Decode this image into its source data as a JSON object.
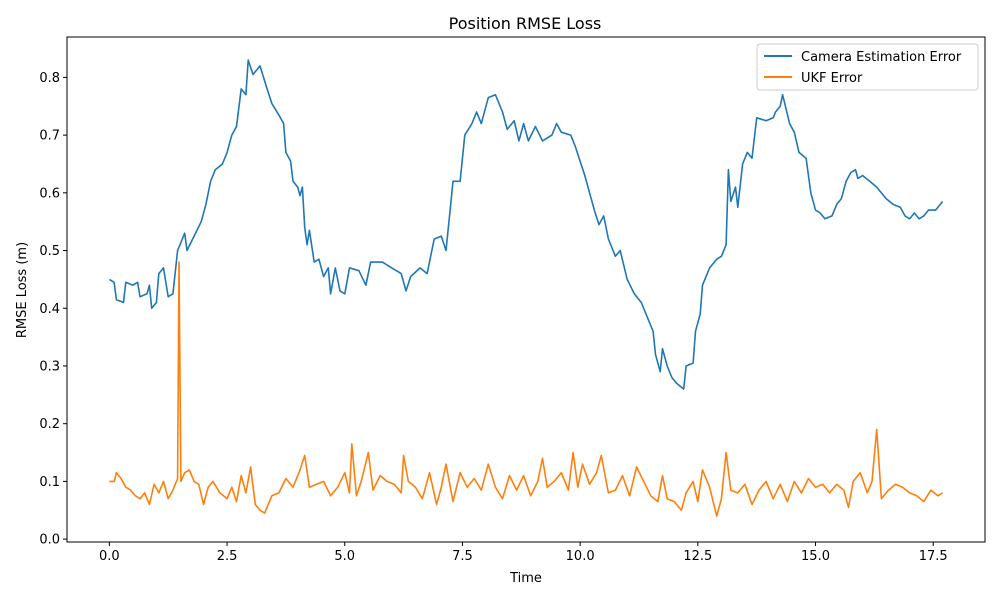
{
  "chart_data": {
    "type": "line",
    "title": "Position RMSE Loss",
    "xlabel": "Time",
    "ylabel": "RMSE Loss (m)",
    "xlim": [
      -0.9,
      18.6
    ],
    "ylim": [
      -0.005,
      0.87
    ],
    "xticks": [
      0.0,
      2.5,
      5.0,
      7.5,
      10.0,
      12.5,
      15.0,
      17.5
    ],
    "xtick_labels": [
      "0.0",
      "2.5",
      "5.0",
      "7.5",
      "10.0",
      "12.5",
      "15.0",
      "17.5"
    ],
    "yticks": [
      0.0,
      0.1,
      0.2,
      0.3,
      0.4,
      0.5,
      0.6,
      0.7,
      0.8
    ],
    "ytick_labels": [
      "0.0",
      "0.1",
      "0.2",
      "0.3",
      "0.4",
      "0.5",
      "0.6",
      "0.7",
      "0.8"
    ],
    "grid": false,
    "legend_position": "top-right",
    "series": [
      {
        "name": "Camera Estimation Error",
        "color": "#1f77b4",
        "points": [
          [
            0.0,
            0.45
          ],
          [
            0.1,
            0.445
          ],
          [
            0.15,
            0.415
          ],
          [
            0.3,
            0.41
          ],
          [
            0.35,
            0.445
          ],
          [
            0.5,
            0.44
          ],
          [
            0.6,
            0.445
          ],
          [
            0.65,
            0.42
          ],
          [
            0.8,
            0.425
          ],
          [
            0.85,
            0.44
          ],
          [
            0.9,
            0.4
          ],
          [
            1.0,
            0.41
          ],
          [
            1.05,
            0.46
          ],
          [
            1.15,
            0.47
          ],
          [
            1.25,
            0.42
          ],
          [
            1.35,
            0.425
          ],
          [
            1.45,
            0.5
          ],
          [
            1.6,
            0.53
          ],
          [
            1.65,
            0.5
          ],
          [
            1.8,
            0.525
          ],
          [
            1.95,
            0.55
          ],
          [
            2.05,
            0.58
          ],
          [
            2.15,
            0.62
          ],
          [
            2.25,
            0.64
          ],
          [
            2.4,
            0.65
          ],
          [
            2.5,
            0.67
          ],
          [
            2.6,
            0.7
          ],
          [
            2.7,
            0.715
          ],
          [
            2.8,
            0.78
          ],
          [
            2.9,
            0.77
          ],
          [
            2.95,
            0.83
          ],
          [
            3.05,
            0.805
          ],
          [
            3.2,
            0.82
          ],
          [
            3.35,
            0.78
          ],
          [
            3.45,
            0.755
          ],
          [
            3.6,
            0.735
          ],
          [
            3.7,
            0.72
          ],
          [
            3.75,
            0.67
          ],
          [
            3.85,
            0.655
          ],
          [
            3.9,
            0.62
          ],
          [
            4.0,
            0.61
          ],
          [
            4.05,
            0.595
          ],
          [
            4.1,
            0.61
          ],
          [
            4.15,
            0.54
          ],
          [
            4.2,
            0.51
          ],
          [
            4.25,
            0.535
          ],
          [
            4.35,
            0.48
          ],
          [
            4.45,
            0.485
          ],
          [
            4.55,
            0.455
          ],
          [
            4.65,
            0.47
          ],
          [
            4.7,
            0.425
          ],
          [
            4.8,
            0.47
          ],
          [
            4.9,
            0.43
          ],
          [
            5.0,
            0.425
          ],
          [
            5.1,
            0.47
          ],
          [
            5.3,
            0.465
          ],
          [
            5.45,
            0.44
          ],
          [
            5.55,
            0.48
          ],
          [
            5.8,
            0.48
          ],
          [
            6.0,
            0.47
          ],
          [
            6.2,
            0.46
          ],
          [
            6.3,
            0.43
          ],
          [
            6.4,
            0.455
          ],
          [
            6.6,
            0.47
          ],
          [
            6.75,
            0.46
          ],
          [
            6.9,
            0.52
          ],
          [
            7.05,
            0.525
          ],
          [
            7.15,
            0.5
          ],
          [
            7.25,
            0.58
          ],
          [
            7.3,
            0.62
          ],
          [
            7.45,
            0.62
          ],
          [
            7.55,
            0.7
          ],
          [
            7.7,
            0.72
          ],
          [
            7.8,
            0.74
          ],
          [
            7.9,
            0.72
          ],
          [
            8.05,
            0.765
          ],
          [
            8.2,
            0.77
          ],
          [
            8.35,
            0.74
          ],
          [
            8.45,
            0.71
          ],
          [
            8.6,
            0.725
          ],
          [
            8.7,
            0.69
          ],
          [
            8.8,
            0.72
          ],
          [
            8.9,
            0.69
          ],
          [
            9.05,
            0.715
          ],
          [
            9.2,
            0.69
          ],
          [
            9.4,
            0.7
          ],
          [
            9.5,
            0.72
          ],
          [
            9.6,
            0.705
          ],
          [
            9.8,
            0.7
          ],
          [
            9.9,
            0.68
          ],
          [
            10.0,
            0.655
          ],
          [
            10.1,
            0.63
          ],
          [
            10.2,
            0.6
          ],
          [
            10.3,
            0.57
          ],
          [
            10.4,
            0.545
          ],
          [
            10.5,
            0.56
          ],
          [
            10.6,
            0.52
          ],
          [
            10.75,
            0.49
          ],
          [
            10.85,
            0.5
          ],
          [
            11.0,
            0.45
          ],
          [
            11.15,
            0.425
          ],
          [
            11.3,
            0.41
          ],
          [
            11.45,
            0.38
          ],
          [
            11.55,
            0.36
          ],
          [
            11.6,
            0.32
          ],
          [
            11.7,
            0.29
          ],
          [
            11.75,
            0.33
          ],
          [
            11.85,
            0.3
          ],
          [
            11.95,
            0.28
          ],
          [
            12.05,
            0.27
          ],
          [
            12.2,
            0.26
          ],
          [
            12.25,
            0.3
          ],
          [
            12.4,
            0.305
          ],
          [
            12.45,
            0.36
          ],
          [
            12.55,
            0.39
          ],
          [
            12.6,
            0.44
          ],
          [
            12.75,
            0.47
          ],
          [
            12.9,
            0.485
          ],
          [
            13.0,
            0.49
          ],
          [
            13.1,
            0.51
          ],
          [
            13.15,
            0.64
          ],
          [
            13.2,
            0.585
          ],
          [
            13.3,
            0.61
          ],
          [
            13.35,
            0.575
          ],
          [
            13.45,
            0.65
          ],
          [
            13.55,
            0.67
          ],
          [
            13.65,
            0.66
          ],
          [
            13.75,
            0.73
          ],
          [
            13.95,
            0.725
          ],
          [
            14.1,
            0.73
          ],
          [
            14.15,
            0.74
          ],
          [
            14.25,
            0.75
          ],
          [
            14.3,
            0.77
          ],
          [
            14.45,
            0.72
          ],
          [
            14.55,
            0.705
          ],
          [
            14.65,
            0.67
          ],
          [
            14.8,
            0.66
          ],
          [
            14.9,
            0.6
          ],
          [
            15.0,
            0.57
          ],
          [
            15.1,
            0.565
          ],
          [
            15.2,
            0.555
          ],
          [
            15.35,
            0.56
          ],
          [
            15.45,
            0.58
          ],
          [
            15.55,
            0.59
          ],
          [
            15.65,
            0.62
          ],
          [
            15.75,
            0.635
          ],
          [
            15.85,
            0.64
          ],
          [
            15.9,
            0.625
          ],
          [
            16.0,
            0.63
          ],
          [
            16.15,
            0.62
          ],
          [
            16.3,
            0.61
          ],
          [
            16.5,
            0.59
          ],
          [
            16.65,
            0.58
          ],
          [
            16.8,
            0.575
          ],
          [
            16.9,
            0.56
          ],
          [
            17.0,
            0.555
          ],
          [
            17.1,
            0.565
          ],
          [
            17.2,
            0.555
          ],
          [
            17.3,
            0.56
          ],
          [
            17.4,
            0.57
          ],
          [
            17.55,
            0.57
          ],
          [
            17.7,
            0.585
          ]
        ]
      },
      {
        "name": "UKF Error",
        "color": "#ff7f0e",
        "points": [
          [
            0.0,
            0.1
          ],
          [
            0.1,
            0.1
          ],
          [
            0.15,
            0.115
          ],
          [
            0.25,
            0.105
          ],
          [
            0.35,
            0.09
          ],
          [
            0.45,
            0.085
          ],
          [
            0.55,
            0.075
          ],
          [
            0.65,
            0.07
          ],
          [
            0.75,
            0.08
          ],
          [
            0.85,
            0.06
          ],
          [
            0.95,
            0.095
          ],
          [
            1.05,
            0.08
          ],
          [
            1.15,
            0.1
          ],
          [
            1.25,
            0.07
          ],
          [
            1.35,
            0.085
          ],
          [
            1.45,
            0.105
          ],
          [
            1.48,
            0.48
          ],
          [
            1.52,
            0.1
          ],
          [
            1.6,
            0.115
          ],
          [
            1.7,
            0.12
          ],
          [
            1.8,
            0.1
          ],
          [
            1.9,
            0.095
          ],
          [
            2.0,
            0.06
          ],
          [
            2.1,
            0.09
          ],
          [
            2.2,
            0.1
          ],
          [
            2.35,
            0.08
          ],
          [
            2.5,
            0.07
          ],
          [
            2.6,
            0.09
          ],
          [
            2.7,
            0.065
          ],
          [
            2.8,
            0.11
          ],
          [
            2.9,
            0.08
          ],
          [
            3.0,
            0.125
          ],
          [
            3.1,
            0.06
          ],
          [
            3.2,
            0.05
          ],
          [
            3.3,
            0.045
          ],
          [
            3.45,
            0.075
          ],
          [
            3.6,
            0.08
          ],
          [
            3.75,
            0.105
          ],
          [
            3.9,
            0.09
          ],
          [
            4.05,
            0.12
          ],
          [
            4.15,
            0.145
          ],
          [
            4.25,
            0.09
          ],
          [
            4.4,
            0.095
          ],
          [
            4.55,
            0.1
          ],
          [
            4.7,
            0.075
          ],
          [
            4.85,
            0.09
          ],
          [
            5.0,
            0.115
          ],
          [
            5.1,
            0.08
          ],
          [
            5.15,
            0.165
          ],
          [
            5.25,
            0.075
          ],
          [
            5.35,
            0.1
          ],
          [
            5.5,
            0.15
          ],
          [
            5.6,
            0.085
          ],
          [
            5.75,
            0.11
          ],
          [
            5.9,
            0.1
          ],
          [
            6.05,
            0.095
          ],
          [
            6.2,
            0.08
          ],
          [
            6.25,
            0.145
          ],
          [
            6.35,
            0.1
          ],
          [
            6.5,
            0.09
          ],
          [
            6.65,
            0.07
          ],
          [
            6.8,
            0.115
          ],
          [
            6.95,
            0.06
          ],
          [
            7.05,
            0.09
          ],
          [
            7.15,
            0.13
          ],
          [
            7.3,
            0.065
          ],
          [
            7.45,
            0.115
          ],
          [
            7.6,
            0.09
          ],
          [
            7.75,
            0.105
          ],
          [
            7.9,
            0.085
          ],
          [
            8.05,
            0.13
          ],
          [
            8.2,
            0.09
          ],
          [
            8.35,
            0.07
          ],
          [
            8.5,
            0.11
          ],
          [
            8.65,
            0.085
          ],
          [
            8.8,
            0.11
          ],
          [
            8.95,
            0.075
          ],
          [
            9.1,
            0.1
          ],
          [
            9.2,
            0.14
          ],
          [
            9.3,
            0.09
          ],
          [
            9.45,
            0.1
          ],
          [
            9.6,
            0.115
          ],
          [
            9.75,
            0.085
          ],
          [
            9.85,
            0.15
          ],
          [
            9.95,
            0.09
          ],
          [
            10.05,
            0.13
          ],
          [
            10.2,
            0.095
          ],
          [
            10.35,
            0.115
          ],
          [
            10.45,
            0.145
          ],
          [
            10.6,
            0.08
          ],
          [
            10.75,
            0.085
          ],
          [
            10.9,
            0.11
          ],
          [
            11.05,
            0.075
          ],
          [
            11.2,
            0.125
          ],
          [
            11.35,
            0.1
          ],
          [
            11.5,
            0.075
          ],
          [
            11.65,
            0.065
          ],
          [
            11.75,
            0.11
          ],
          [
            11.85,
            0.07
          ],
          [
            12.0,
            0.065
          ],
          [
            12.15,
            0.05
          ],
          [
            12.25,
            0.08
          ],
          [
            12.4,
            0.1
          ],
          [
            12.5,
            0.065
          ],
          [
            12.6,
            0.12
          ],
          [
            12.75,
            0.09
          ],
          [
            12.9,
            0.04
          ],
          [
            13.0,
            0.07
          ],
          [
            13.1,
            0.15
          ],
          [
            13.2,
            0.085
          ],
          [
            13.35,
            0.08
          ],
          [
            13.5,
            0.095
          ],
          [
            13.65,
            0.06
          ],
          [
            13.8,
            0.085
          ],
          [
            13.95,
            0.1
          ],
          [
            14.1,
            0.07
          ],
          [
            14.25,
            0.095
          ],
          [
            14.4,
            0.065
          ],
          [
            14.55,
            0.1
          ],
          [
            14.7,
            0.08
          ],
          [
            14.85,
            0.105
          ],
          [
            15.0,
            0.09
          ],
          [
            15.15,
            0.095
          ],
          [
            15.3,
            0.08
          ],
          [
            15.45,
            0.095
          ],
          [
            15.6,
            0.085
          ],
          [
            15.7,
            0.055
          ],
          [
            15.8,
            0.1
          ],
          [
            15.95,
            0.115
          ],
          [
            16.1,
            0.08
          ],
          [
            16.2,
            0.1
          ],
          [
            16.3,
            0.19
          ],
          [
            16.4,
            0.07
          ],
          [
            16.55,
            0.085
          ],
          [
            16.7,
            0.095
          ],
          [
            16.85,
            0.09
          ],
          [
            17.0,
            0.08
          ],
          [
            17.15,
            0.075
          ],
          [
            17.3,
            0.065
          ],
          [
            17.45,
            0.085
          ],
          [
            17.6,
            0.075
          ],
          [
            17.7,
            0.08
          ]
        ]
      }
    ]
  }
}
